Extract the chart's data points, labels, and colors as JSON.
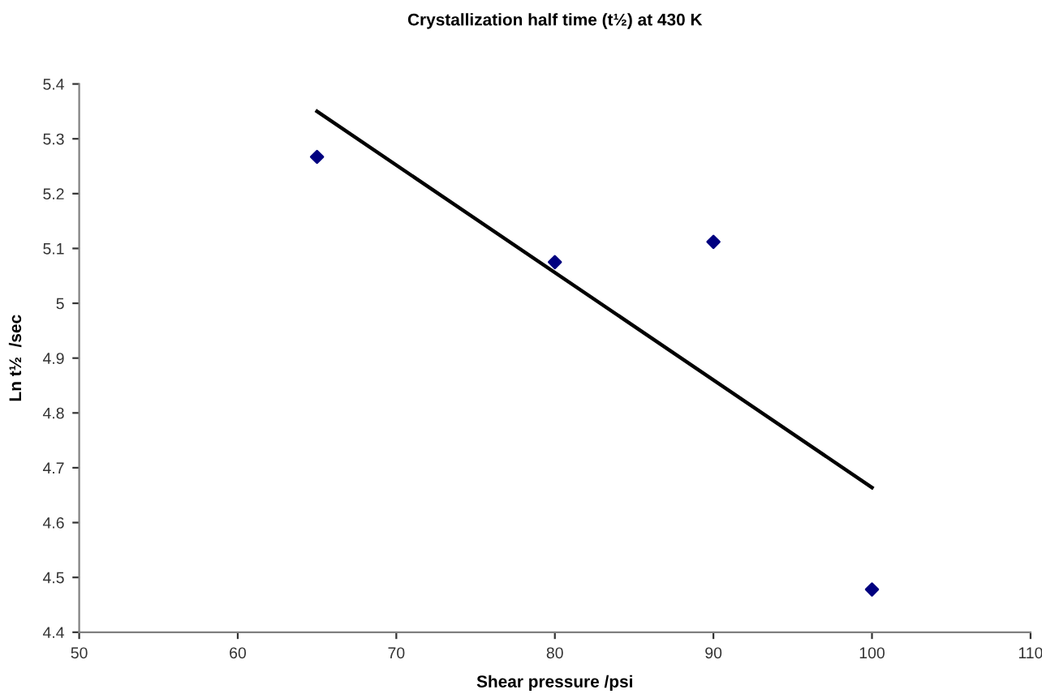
{
  "chart_data": {
    "type": "scatter",
    "title": "Crystallization half time (t½) at 430 K",
    "xlabel": "Shear pressure /psi",
    "ylabel": "Ln t½  /sec",
    "series": [
      {
        "color": "#000080",
        "marker": "diamond",
        "x": [
          65,
          80,
          90,
          100
        ],
        "values": [
          5.267,
          5.075,
          5.112,
          4.478
        ]
      },
      {
        "type": "line",
        "color": "#000000",
        "marker": "none",
        "line_style": "solid",
        "x": [
          65,
          100
        ],
        "values": [
          5.35,
          4.664
        ]
      }
    ],
    "xlim": [
      50,
      110
    ],
    "xticks": [
      50,
      60,
      70,
      80,
      90,
      100,
      110
    ],
    "ylim": [
      4.4,
      5.4
    ],
    "yticks": [
      4.4,
      4.5,
      4.6,
      4.7,
      4.8,
      4.9,
      5,
      5.1,
      5.2,
      5.3,
      5.4
    ],
    "grid": false,
    "legend": false
  }
}
